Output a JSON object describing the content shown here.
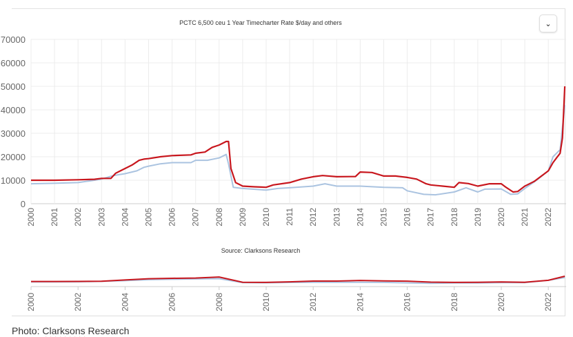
{
  "chart_data": {
    "type": "line",
    "title": "PCTC 6,500 ceu 1 Year Timecharter Rate $/day and others",
    "source_label": "Source: Clarksons Research",
    "xlabel": "",
    "ylabel": "",
    "xlim": [
      2000,
      2022.7
    ],
    "ylim": [
      0,
      70000
    ],
    "yticks": [
      0,
      10000,
      20000,
      30000,
      40000,
      50000,
      60000,
      70000
    ],
    "ytick_labels": [
      "0",
      "10000",
      "20000",
      "30000",
      "40000",
      "50000",
      "60000",
      "70000"
    ],
    "xticks": [
      "2000",
      "2001",
      "2002",
      "2003",
      "2004",
      "2005",
      "2006",
      "2007",
      "2008",
      "2009",
      "2010",
      "2011",
      "2012",
      "2013",
      "2014",
      "2015",
      "2016",
      "2017",
      "2018",
      "2019",
      "2020",
      "2021",
      "2022"
    ],
    "navigator_xticks": [
      "2000",
      "2002",
      "2004",
      "2006",
      "2008",
      "2010",
      "2012",
      "2014",
      "2016",
      "2018",
      "2020",
      "2022"
    ],
    "grid": true,
    "series": [
      {
        "name": "PCTC 6,500 ceu 1 Year Timecharter Rate",
        "color": "#c8161d",
        "x": [
          2000,
          2001,
          2002,
          2002.7,
          2003,
          2003.4,
          2003.6,
          2003.8,
          2004,
          2004.3,
          2004.6,
          2004.8,
          2005,
          2005.5,
          2006,
          2006.8,
          2007,
          2007.4,
          2007.7,
          2008,
          2008.3,
          2008.4,
          2008.5,
          2008.7,
          2009,
          2009.5,
          2010,
          2010.3,
          2011,
          2011.5,
          2012,
          2012.4,
          2013,
          2013.8,
          2014,
          2014.5,
          2015,
          2015.5,
          2016,
          2016.4,
          2016.8,
          2017,
          2017.5,
          2018,
          2018.2,
          2018.6,
          2019,
          2019.5,
          2020,
          2020.2,
          2020.5,
          2020.7,
          2021,
          2021.4,
          2021.8,
          2022,
          2022.2,
          2022.35,
          2022.5,
          2022.6,
          2022.7
        ],
        "y": [
          10000,
          10000,
          10200,
          10400,
          10800,
          10800,
          13000,
          14000,
          15000,
          16500,
          18500,
          19000,
          19200,
          20000,
          20500,
          20800,
          21500,
          22000,
          24000,
          25000,
          26500,
          26500,
          15000,
          9000,
          7500,
          7200,
          7000,
          8000,
          9000,
          10500,
          11500,
          12000,
          11500,
          11600,
          13500,
          13300,
          11800,
          11800,
          11200,
          10500,
          8500,
          8000,
          7500,
          7000,
          9000,
          8600,
          7500,
          8500,
          8500,
          7000,
          5000,
          5200,
          7500,
          9500,
          12500,
          14000,
          17500,
          19500,
          21500,
          28000,
          50000
        ]
      },
      {
        "name": "others",
        "color": "#aac3e0",
        "x": [
          2000,
          2001,
          2002,
          2002.7,
          2003,
          2003.5,
          2004,
          2004.5,
          2004.8,
          2005,
          2005.5,
          2006,
          2006.8,
          2007,
          2007.5,
          2008,
          2008.3,
          2008.4,
          2008.6,
          2009,
          2010,
          2010.5,
          2011,
          2012,
          2012.5,
          2013,
          2014,
          2015,
          2015.8,
          2016,
          2016.7,
          2017.2,
          2018,
          2018.5,
          2019,
          2019.3,
          2020,
          2020.4,
          2020.7,
          2021,
          2021.5,
          2022,
          2022.2,
          2022.5,
          2022.7
        ],
        "y": [
          8500,
          8700,
          9000,
          10000,
          10500,
          12000,
          12800,
          14000,
          15500,
          16000,
          17000,
          17500,
          17500,
          18500,
          18500,
          19500,
          21000,
          17000,
          7000,
          6500,
          5800,
          6500,
          6800,
          7500,
          8500,
          7500,
          7500,
          7000,
          6800,
          5500,
          4000,
          3800,
          5000,
          6800,
          5000,
          6200,
          6300,
          4000,
          4200,
          6500,
          10000,
          14000,
          20000,
          23000,
          42000
        ]
      }
    ]
  },
  "header": {
    "menu_icon": "chevron-down-icon"
  },
  "caption": {
    "prefix": "Photo: ",
    "link": "Clarksons",
    "suffix": " Research"
  }
}
